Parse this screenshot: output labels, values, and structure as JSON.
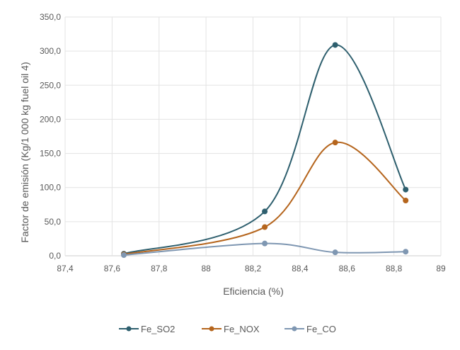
{
  "chart_data": {
    "type": "line",
    "title": "",
    "xlabel": "Eficiencia (%)",
    "ylabel": "Factor de emisión (Kg/1 000 kg fuel oil 4)",
    "xlim": [
      87.4,
      89
    ],
    "ylim": [
      0,
      350
    ],
    "xticks": [
      "87,4",
      "87,6",
      "87,8",
      "88",
      "88,2",
      "88,4",
      "88,6",
      "88,8",
      "89"
    ],
    "xtick_values": [
      87.4,
      87.6,
      87.8,
      88.0,
      88.2,
      88.4,
      88.6,
      88.8,
      89.0
    ],
    "yticks": [
      "0,0",
      "50,0",
      "100,0",
      "150,0",
      "200,0",
      "250,0",
      "300,0",
      "350,0"
    ],
    "ytick_values": [
      0,
      50,
      100,
      150,
      200,
      250,
      300,
      350
    ],
    "grid": true,
    "smooth": true,
    "legend_position": "bottom",
    "x": [
      87.65,
      88.25,
      88.55,
      88.85
    ],
    "series": [
      {
        "name": "Fe_SO2",
        "color": "#2e5f6e",
        "values": [
          3,
          65,
          309,
          97
        ]
      },
      {
        "name": "Fe_NOX",
        "color": "#b5651d",
        "values": [
          2,
          42,
          166,
          81
        ]
      },
      {
        "name": "Fe_CO",
        "color": "#7f97b2",
        "values": [
          1,
          18,
          5,
          6
        ]
      }
    ]
  }
}
